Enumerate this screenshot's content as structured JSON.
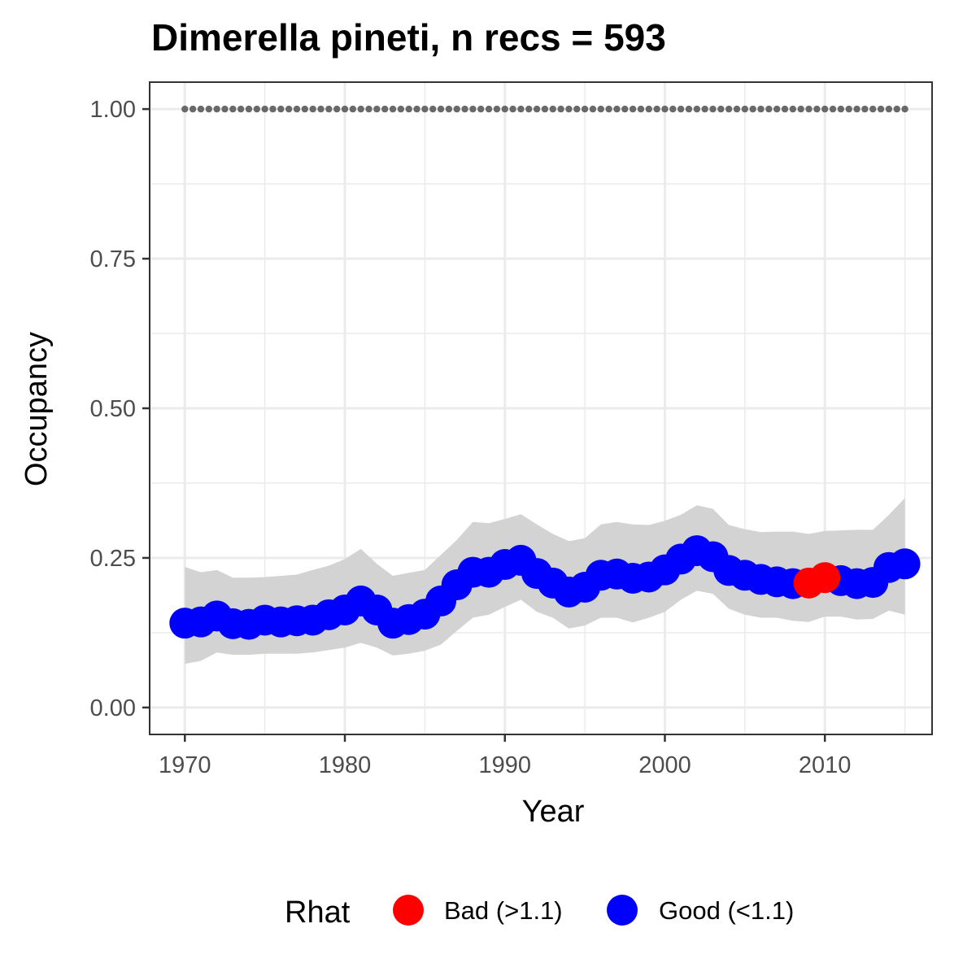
{
  "chart_data": {
    "type": "line",
    "title": "Dimerella pineti, n recs = 593",
    "xlabel": "Year",
    "ylabel": "Occupancy",
    "xlim": [
      1967.8,
      2016.7
    ],
    "ylim": [
      -0.045,
      1.045
    ],
    "x_ticks": [
      1970,
      1980,
      1990,
      2000,
      2010
    ],
    "x_tick_labels": [
      "1970",
      "1980",
      "1990",
      "2000",
      "2010"
    ],
    "y_ticks": [
      0,
      0.25,
      0.5,
      0.75,
      1.0
    ],
    "y_tick_labels": [
      "0.00",
      "0.25",
      "0.50",
      "0.75",
      "1.00"
    ],
    "grid": true,
    "x": [
      1970,
      1971,
      1972,
      1973,
      1974,
      1975,
      1976,
      1977,
      1978,
      1979,
      1980,
      1981,
      1982,
      1983,
      1984,
      1985,
      1986,
      1987,
      1988,
      1989,
      1990,
      1991,
      1992,
      1993,
      1994,
      1995,
      1996,
      1997,
      1998,
      1999,
      2000,
      2001,
      2002,
      2003,
      2004,
      2005,
      2006,
      2007,
      2008,
      2009,
      2010,
      2011,
      2012,
      2013,
      2014,
      2015
    ],
    "series": [
      {
        "values": [
          0.141,
          0.143,
          0.153,
          0.14,
          0.139,
          0.146,
          0.143,
          0.145,
          0.146,
          0.155,
          0.163,
          0.178,
          0.163,
          0.141,
          0.147,
          0.156,
          0.178,
          0.205,
          0.226,
          0.226,
          0.239,
          0.246,
          0.224,
          0.208,
          0.193,
          0.201,
          0.221,
          0.223,
          0.216,
          0.218,
          0.23,
          0.248,
          0.262,
          0.252,
          0.229,
          0.221,
          0.214,
          0.21,
          0.207,
          0.208,
          0.217,
          0.212,
          0.207,
          0.209,
          0.234,
          0.24
        ],
        "lower": [
          0.073,
          0.078,
          0.092,
          0.088,
          0.088,
          0.09,
          0.09,
          0.09,
          0.092,
          0.096,
          0.1,
          0.108,
          0.1,
          0.087,
          0.09,
          0.095,
          0.105,
          0.128,
          0.15,
          0.155,
          0.168,
          0.18,
          0.16,
          0.15,
          0.132,
          0.137,
          0.15,
          0.15,
          0.142,
          0.15,
          0.16,
          0.18,
          0.195,
          0.19,
          0.165,
          0.155,
          0.15,
          0.15,
          0.145,
          0.143,
          0.152,
          0.152,
          0.147,
          0.148,
          0.162,
          0.155
        ],
        "upper": [
          0.235,
          0.226,
          0.23,
          0.217,
          0.217,
          0.218,
          0.22,
          0.222,
          0.23,
          0.237,
          0.248,
          0.265,
          0.24,
          0.22,
          0.225,
          0.23,
          0.255,
          0.28,
          0.31,
          0.308,
          0.315,
          0.323,
          0.306,
          0.29,
          0.278,
          0.283,
          0.306,
          0.31,
          0.306,
          0.305,
          0.312,
          0.322,
          0.338,
          0.332,
          0.305,
          0.298,
          0.293,
          0.294,
          0.294,
          0.29,
          0.295,
          0.296,
          0.297,
          0.297,
          0.322,
          0.35
        ],
        "rhat": [
          "good",
          "good",
          "good",
          "good",
          "good",
          "good",
          "good",
          "good",
          "good",
          "good",
          "good",
          "good",
          "good",
          "good",
          "good",
          "good",
          "good",
          "good",
          "good",
          "good",
          "good",
          "good",
          "good",
          "good",
          "good",
          "good",
          "good",
          "good",
          "good",
          "good",
          "good",
          "good",
          "good",
          "good",
          "good",
          "good",
          "good",
          "good",
          "good",
          "bad",
          "bad",
          "good",
          "good",
          "good",
          "good",
          "good"
        ]
      },
      {
        "values": [
          1,
          1,
          1,
          1,
          1,
          1,
          1,
          1,
          1,
          1,
          1,
          1,
          1,
          1,
          1,
          1,
          1,
          1,
          1,
          1,
          1,
          1,
          1,
          1,
          1,
          1,
          1,
          1,
          1,
          1,
          1,
          1,
          1,
          1,
          1,
          1,
          1,
          1,
          1,
          1,
          1,
          1,
          1,
          1,
          1,
          1
        ],
        "x_step": 0.5
      }
    ],
    "legend": {
      "title": "Rhat",
      "placement": "bottom",
      "items": [
        {
          "key": "bad",
          "label": "Bad (>1.1)",
          "color": "#ff0000"
        },
        {
          "key": "good",
          "label": "Good (<1.1)",
          "color": "#0000ff"
        }
      ]
    },
    "colors": {
      "ribbon": "#d3d3d3",
      "dotted_line": "#696969",
      "grid": "#ebebeb",
      "panel_border": "#333333"
    }
  }
}
